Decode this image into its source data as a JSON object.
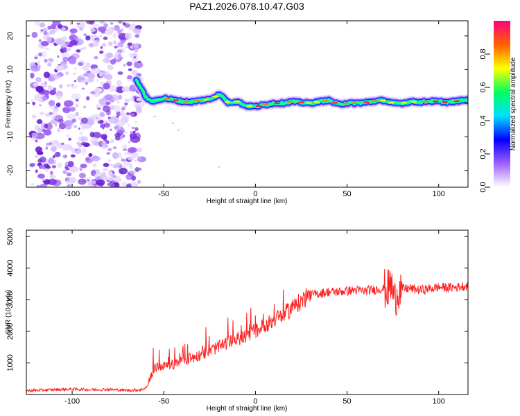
{
  "figure_title": "PAZ1.2026.078.10.47.G03",
  "chart_data": [
    {
      "type": "heatmap",
      "name": "spectrogram",
      "title": "PAZ1.2026.078.10.47.G03",
      "xlabel": "Height of straight line (km)",
      "ylabel": "Frequency (Hz)",
      "xlim": [
        -125,
        116
      ],
      "ylim": [
        -25,
        24.5
      ],
      "xticks": [
        -100,
        -50,
        0,
        50,
        100
      ],
      "yticks": [
        -20,
        -10,
        0,
        10,
        20
      ],
      "noise_region_x": [
        -122,
        -62
      ],
      "signal_trace": {
        "x": [
          -65,
          -62,
          -60,
          -58,
          -55,
          -50,
          -45,
          -40,
          -35,
          -30,
          -25,
          -20,
          -18,
          -15,
          -10,
          -5,
          0,
          5,
          10,
          15,
          20,
          25,
          30,
          35,
          40,
          45,
          50,
          55,
          60,
          65,
          70,
          75,
          80,
          85,
          90,
          95,
          100,
          105,
          110,
          116
        ],
        "frequency_hz": [
          7,
          4,
          2,
          0.8,
          0.6,
          1.5,
          1,
          0.5,
          0.4,
          0.8,
          1.2,
          2.5,
          2,
          0.2,
          0.5,
          -0.8,
          -1,
          -0.5,
          0,
          0,
          0.5,
          0.2,
          0,
          0.5,
          0.8,
          -0.3,
          0,
          0,
          0.2,
          0.6,
          0.8,
          0,
          0,
          0.5,
          0.3,
          0.6,
          0.5,
          0.3,
          0.6,
          1
        ]
      },
      "colorbar": {
        "label": "Normalized spectral amplitude",
        "range": [
          0,
          1
        ],
        "ticks": [
          "0.0",
          "0.2",
          "0.4",
          "0.6",
          "0.8"
        ],
        "colors": [
          "#ffffff",
          "#9f5fff",
          "#0000ff",
          "#00dfff",
          "#00ff60",
          "#ffff00",
          "#ff6000",
          "#ff0080"
        ]
      }
    },
    {
      "type": "line",
      "name": "snr",
      "xlabel": "Height of straight line (km)",
      "ylabel": "SNR (10 * v/v)",
      "xlim": [
        -125,
        116
      ],
      "ylim": [
        0,
        5200
      ],
      "xticks": [
        -100,
        -50,
        0,
        50,
        100
      ],
      "yticks": [
        1000,
        2000,
        3000,
        4000,
        5000
      ],
      "color": "#ff2020",
      "series": [
        {
          "name": "SNR",
          "x": [
            -125,
            -110,
            -100,
            -90,
            -80,
            -70,
            -62,
            -59,
            -57,
            -55,
            -50,
            -45,
            -40,
            -35,
            -30,
            -25,
            -20,
            -15,
            -10,
            -5,
            0,
            5,
            10,
            15,
            20,
            25,
            28,
            30,
            35,
            40,
            45,
            50,
            55,
            60,
            65,
            70,
            72,
            74,
            76,
            78,
            80,
            85,
            90,
            95,
            100,
            105,
            110,
            116
          ],
          "values": [
            120,
            150,
            170,
            150,
            160,
            130,
            150,
            250,
            600,
            850,
            900,
            950,
            1050,
            1150,
            1250,
            1400,
            1500,
            1650,
            1750,
            1850,
            2000,
            2200,
            2350,
            2500,
            2750,
            2950,
            3100,
            3150,
            3200,
            3250,
            3250,
            3280,
            3300,
            3280,
            3320,
            3350,
            3300,
            3500,
            3000,
            3300,
            3350,
            3350,
            3300,
            3350,
            3400,
            3380,
            3400,
            3450
          ]
        }
      ]
    }
  ]
}
